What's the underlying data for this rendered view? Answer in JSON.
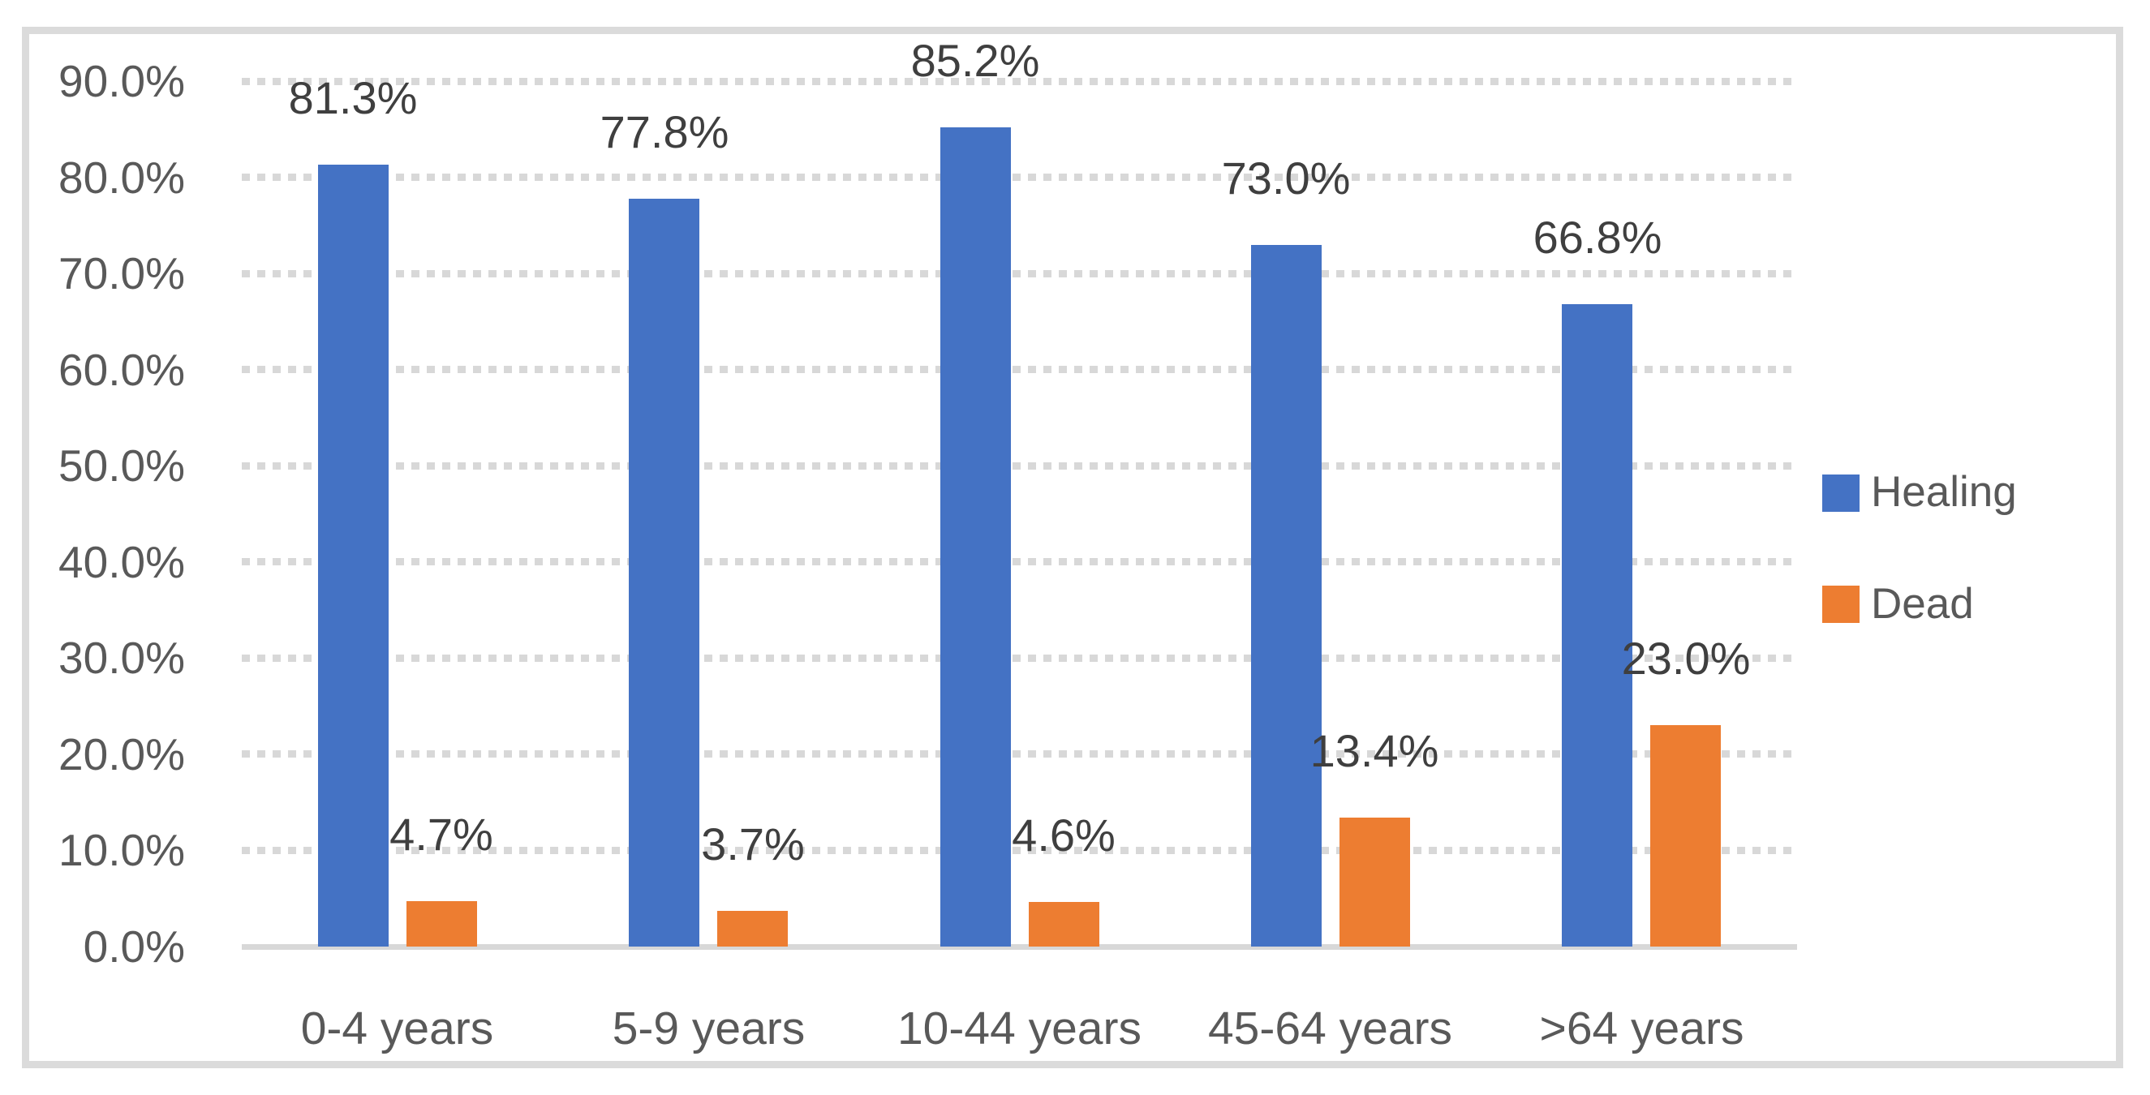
{
  "chart_data": {
    "type": "bar",
    "title": "",
    "categories": [
      "0-4 years",
      "5-9 years",
      "10-44 years",
      "45-64 years",
      ">64 years"
    ],
    "series": [
      {
        "name": "Healing",
        "color": "#4472C4",
        "values": [
          81.3,
          77.8,
          85.2,
          73.0,
          66.8
        ],
        "labels": [
          "81.3%",
          "77.8%",
          "85.2%",
          "73.0%",
          "66.8%"
        ]
      },
      {
        "name": "Dead",
        "color": "#ED7D31",
        "values": [
          4.7,
          3.7,
          4.6,
          13.4,
          23.0
        ],
        "labels": [
          "4.7%",
          "3.7%",
          "4.6%",
          "13.4%",
          "23.0%"
        ]
      }
    ],
    "y_axis": {
      "min": 0,
      "max": 90,
      "step": 10,
      "ticks": [
        "0.0%",
        "10.0%",
        "20.0%",
        "30.0%",
        "40.0%",
        "50.0%",
        "60.0%",
        "70.0%",
        "80.0%",
        "90.0%"
      ]
    },
    "xlabel": "",
    "ylabel": "",
    "grid": "horizontal-dashed",
    "legend": {
      "position": "right",
      "entries": [
        "Healing",
        "Dead"
      ]
    },
    "colors": {
      "gridline": "#D8D8D8",
      "axis_line": "#D8D8D8",
      "frame_border": "#DBDBDB",
      "tick_text": "#595959",
      "category_text": "#595959",
      "data_label_text": "#3F3F3F",
      "legend_text": "#595959",
      "background": "#FFFFFF"
    }
  }
}
